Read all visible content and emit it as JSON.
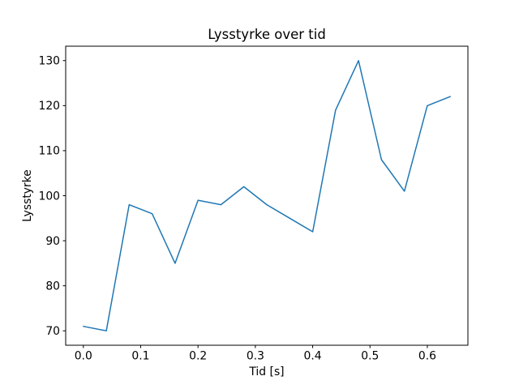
{
  "figure": {
    "background": "#ffffff"
  },
  "chart_data": {
    "type": "line",
    "title": "Lysstyrke over tid",
    "xlabel": "Tid [s]",
    "ylabel": "Lysstyrke",
    "x": [
      0.0,
      0.04,
      0.08,
      0.12,
      0.16,
      0.2,
      0.24,
      0.28,
      0.32,
      0.36,
      0.4,
      0.44,
      0.48,
      0.52,
      0.56,
      0.6,
      0.64
    ],
    "y": [
      71,
      70,
      98,
      96,
      85,
      99,
      98,
      102,
      98,
      95,
      92,
      119,
      130,
      108,
      101,
      120,
      122
    ],
    "xlim": [
      -0.0308,
      0.6708
    ],
    "ylim": [
      66.8,
      133.2
    ],
    "xticks": [
      0.0,
      0.1,
      0.2,
      0.3,
      0.4,
      0.5,
      0.6
    ],
    "xtick_labels": [
      "0.0",
      "0.1",
      "0.2",
      "0.3",
      "0.4",
      "0.5",
      "0.6"
    ],
    "yticks": [
      70,
      80,
      90,
      100,
      110,
      120,
      130
    ],
    "ytick_labels": [
      "70",
      "80",
      "90",
      "100",
      "110",
      "120",
      "130"
    ],
    "line_color": "#1f77b4",
    "line_width": 1.5,
    "grid": false,
    "legend": "none",
    "spine_color": "#000000"
  }
}
